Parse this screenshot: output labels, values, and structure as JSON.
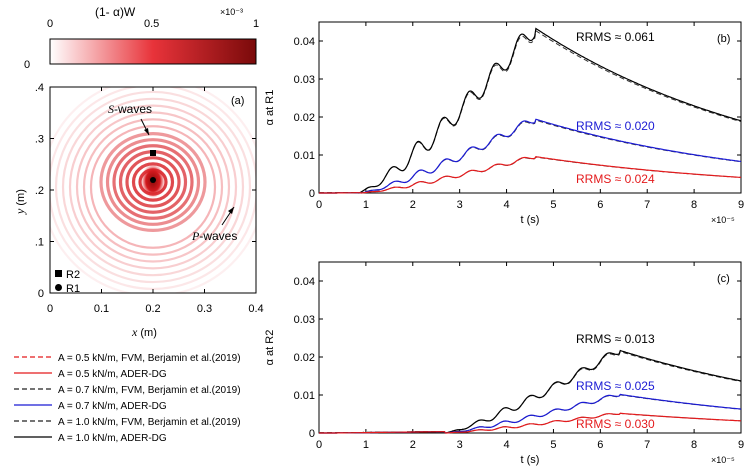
{
  "colorbar": {
    "title": "(1- α)W",
    "scale_label": "×10⁻³",
    "ticks": [
      "0",
      "0.5",
      "1"
    ],
    "left_label": "0"
  },
  "map": {
    "panel_label": "(a)",
    "xlabel_var": "x",
    "xlabel_unit": " (m)",
    "ylabel_var": "y",
    "ylabel_unit": " (m)",
    "xticks": [
      "0",
      "0.1",
      "0.2",
      "0.3",
      "0.4"
    ],
    "yticks": [
      ".4",
      ".3",
      ".2",
      ".1",
      "0"
    ],
    "s_waves_var": "S",
    "s_waves_rest": "-waves",
    "p_waves_var": "P",
    "p_waves_rest": "-waves",
    "receiver_r2": "R2",
    "receiver_r1": "R1"
  },
  "legend": [
    {
      "label": "A = 0.5 kN/m, FVM, Berjamin et al.(2019)",
      "color": "#e41a1c",
      "dash": true
    },
    {
      "label": "A = 0.5 kN/m, ADER-DG",
      "color": "#e41a1c",
      "dash": false
    },
    {
      "label": "A = 0.7 kN/m, FVM, Berjamin et al.(2019)",
      "color": "#222222",
      "dash": true
    },
    {
      "label": "A = 0.7 kN/m, ADER-DG",
      "color": "#1a1ad4",
      "dash": false
    },
    {
      "label": "A = 1.0 kN/m, FVM, Berjamin et al.(2019)",
      "color": "#222222",
      "dash": true
    },
    {
      "label": "A = 1.0 kN/m, ADER-DG",
      "color": "#000000",
      "dash": false
    }
  ],
  "colors": {
    "red": "#e41a1c",
    "blue": "#1a1ad4",
    "black": "#000000"
  },
  "chart_data": [
    {
      "type": "line",
      "panel": "(b)",
      "xlabel": "t (s)",
      "ylabel": "α at R1",
      "x_scale_label": "×10⁻⁵",
      "xlim": [
        0,
        9
      ],
      "ylim": [
        0,
        0.045
      ],
      "xticks": [
        "0",
        "1",
        "2",
        "3",
        "4",
        "5",
        "6",
        "7",
        "8",
        "9"
      ],
      "yticks": [
        "0",
        "0.01",
        "0.02",
        "0.03",
        "0.04"
      ],
      "annotations": [
        {
          "text": "RRMS ≈ 0.061",
          "color": "#000000"
        },
        {
          "text": "RRMS ≈ 0.020",
          "color": "#1a1ad4"
        },
        {
          "text": "RRMS ≈ 0.024",
          "color": "#e41a1c"
        }
      ],
      "series": [
        {
          "name": "A = 1.0 kN/m",
          "onset": 0.85,
          "peak_t": 4.6,
          "peak": 0.0435,
          "end": 0.019,
          "color": "#000000",
          "osc": 0.0025
        },
        {
          "name": "A = 0.7 kN/m",
          "onset": 0.9,
          "peak_t": 4.6,
          "peak": 0.0195,
          "end": 0.0083,
          "color": "#1a1ad4",
          "osc": 0.001
        },
        {
          "name": "A = 0.5 kN/m",
          "onset": 0.9,
          "peak_t": 4.6,
          "peak": 0.0096,
          "end": 0.0041,
          "color": "#e41a1c",
          "osc": 0.0005
        }
      ]
    },
    {
      "type": "line",
      "panel": "(c)",
      "xlabel": "t (s)",
      "ylabel": "α at R2",
      "x_scale_label": "×10⁻⁵",
      "xlim": [
        0,
        9
      ],
      "ylim": [
        0,
        0.045
      ],
      "xticks": [
        "0",
        "1",
        "2",
        "3",
        "4",
        "5",
        "6",
        "7",
        "8",
        "9"
      ],
      "yticks": [
        "0",
        "0.01",
        "0.02",
        "0.03",
        "0.04"
      ],
      "annotations": [
        {
          "text": "RRMS ≈ 0.013",
          "color": "#000000"
        },
        {
          "text": "RRMS ≈ 0.025",
          "color": "#1a1ad4"
        },
        {
          "text": "RRMS ≈ 0.030",
          "color": "#e41a1c"
        }
      ],
      "series": [
        {
          "name": "A = 1.0 kN/m",
          "onset": 2.7,
          "peak_t": 6.4,
          "peak": 0.0218,
          "end": 0.0137,
          "color": "#000000",
          "osc": 0.001
        },
        {
          "name": "A = 0.7 kN/m",
          "onset": 2.7,
          "peak_t": 6.4,
          "peak": 0.0102,
          "end": 0.0063,
          "color": "#1a1ad4",
          "osc": 0.0005
        },
        {
          "name": "A = 0.5 kN/m",
          "onset": 2.7,
          "peak_t": 6.4,
          "peak": 0.0052,
          "end": 0.0032,
          "color": "#e41a1c",
          "osc": 0.0003
        }
      ]
    }
  ]
}
